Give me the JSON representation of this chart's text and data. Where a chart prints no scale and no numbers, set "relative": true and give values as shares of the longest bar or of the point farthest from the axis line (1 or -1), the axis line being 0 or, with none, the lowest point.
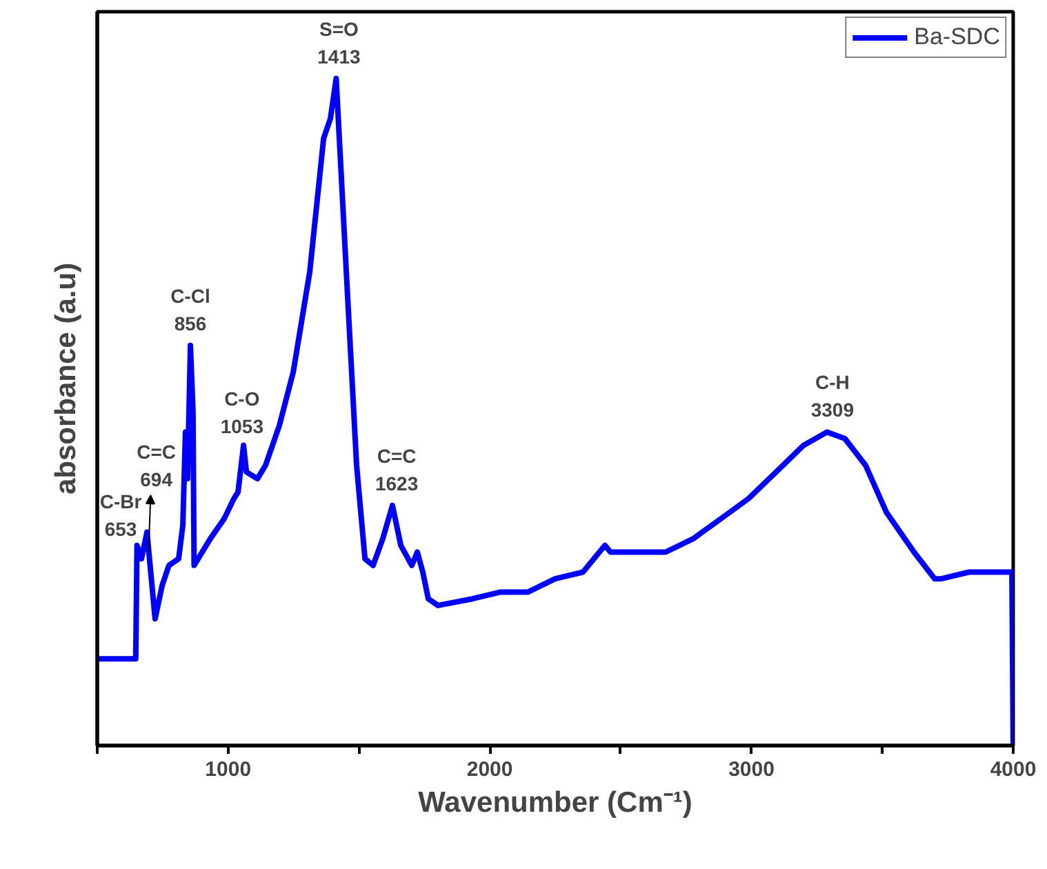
{
  "chart_data": {
    "type": "line",
    "relative": true,
    "xlabel": "Wavenumber (Cm⁻¹)",
    "ylabel": "absorbance (a.u)",
    "xlim": [
      500,
      4000
    ],
    "xticks": [
      {
        "value": 500,
        "label": null
      },
      1000,
      {
        "value": 1500,
        "label": null
      },
      2000,
      {
        "value": 2500,
        "label": null
      },
      3000,
      {
        "value": 3500,
        "label": null
      },
      4000
    ],
    "tick_labels": "x",
    "grid": false,
    "legend": "top right",
    "marker": "none",
    "line_style": "solid",
    "series": [
      {
        "name": "Ba-SDC",
        "color": "#0000ff",
        "x": [
          500,
          647,
          652,
          669,
          690,
          721,
          748,
          774,
          811,
          827,
          837,
          845,
          856,
          866,
          870,
          932,
          985,
          1022,
          1038,
          1059,
          1070,
          1112,
          1143,
          1196,
          1249,
          1312,
          1365,
          1391,
          1413,
          1449,
          1491,
          1523,
          1554,
          1591,
          1628,
          1660,
          1702,
          1723,
          1744,
          1765,
          1802,
          1934,
          2039,
          2145,
          2250,
          2356,
          2440,
          2461,
          2514,
          2672,
          2777,
          2883,
          2988,
          3094,
          3199,
          3289,
          3357,
          3436,
          3515,
          3621,
          3700,
          3726,
          3831,
          3995,
          4000
        ],
        "values": [
          0.13,
          0.13,
          0.3,
          0.28,
          0.32,
          0.19,
          0.24,
          0.27,
          0.28,
          0.33,
          0.47,
          0.4,
          0.6,
          0.5,
          0.27,
          0.31,
          0.34,
          0.37,
          0.38,
          0.45,
          0.41,
          0.4,
          0.42,
          0.48,
          0.56,
          0.71,
          0.91,
          0.94,
          1.0,
          0.73,
          0.42,
          0.28,
          0.27,
          0.31,
          0.36,
          0.3,
          0.27,
          0.29,
          0.26,
          0.22,
          0.21,
          0.22,
          0.23,
          0.23,
          0.25,
          0.26,
          0.3,
          0.29,
          0.29,
          0.29,
          0.31,
          0.34,
          0.37,
          0.41,
          0.45,
          0.47,
          0.46,
          0.42,
          0.35,
          0.29,
          0.25,
          0.25,
          0.26,
          0.26,
          0.0
        ]
      }
    ],
    "annotations": [
      {
        "text": "C-Br\n653",
        "x": 653,
        "y": 0.3
      },
      {
        "text": "C=C\n694",
        "x": 694,
        "y": 0.32
      },
      {
        "text": "C-Cl\n856",
        "x": 856,
        "y": 0.6
      },
      {
        "text": "C-O\n1053",
        "x": 1053,
        "y": 0.45
      },
      {
        "text": "S=O\n1413",
        "x": 1413,
        "y": 1.0
      },
      {
        "text": "C=C\n1623",
        "x": 1623,
        "y": 0.36
      },
      {
        "text": "C-H\n3309",
        "x": 3309,
        "y": 0.47
      }
    ]
  }
}
